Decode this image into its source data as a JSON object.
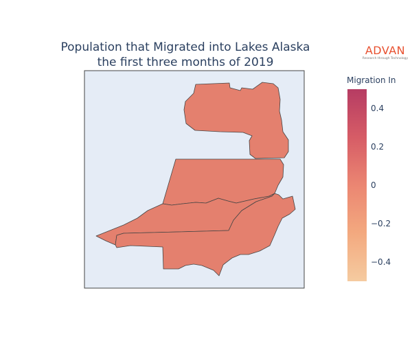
{
  "title": {
    "line1": "Population that Migrated into Lakes Alaska",
    "line2": "the first three months of 2019"
  },
  "logo": {
    "text": "ADVAN",
    "tagline": "Research through Technology",
    "color": "#e8502f"
  },
  "colorbar": {
    "title": "Migration In",
    "ticks": [
      "0.4",
      "0.2",
      "0",
      "−0.2",
      "−0.4"
    ],
    "range": [
      -0.5,
      0.5
    ],
    "colors": [
      "#f5cba0",
      "#f3a97f",
      "#eb8672",
      "#d65c66",
      "#b63c63"
    ]
  },
  "map": {
    "background": "#e5ecf6",
    "border": "#444444",
    "region_fill": "#e4806e",
    "region_value": 0
  }
}
